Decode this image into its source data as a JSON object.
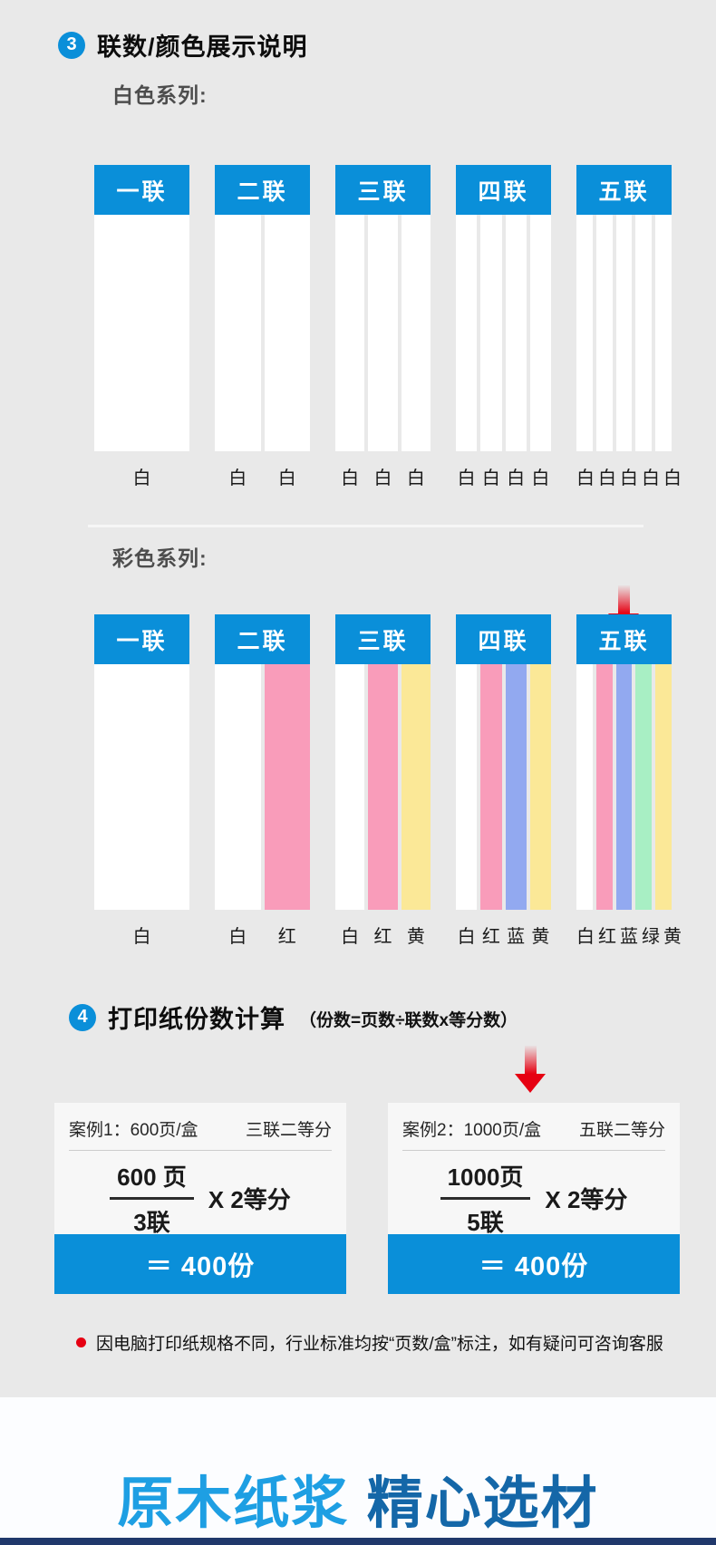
{
  "colors": {
    "brand_blue": "#0a8fd9",
    "page_bg": "#e9e9e9",
    "card_bg": "#f7f7f7",
    "accent_red": "#e60012",
    "headline_light_blue": "#1e9fe3",
    "headline_dark_blue": "#1467a8",
    "strip": {
      "white": "#ffffff",
      "pink": "#f99cba",
      "periwinkle": "#92a9f0",
      "mint": "#a8efc4",
      "yellow": "#fbe897"
    }
  },
  "section3": {
    "number": "3",
    "title": "联数/颜色展示说明",
    "white_series": {
      "label": "白色系列:",
      "columns": [
        {
          "header": "一联",
          "strips": [
            "white"
          ],
          "labels": [
            "白"
          ]
        },
        {
          "header": "二联",
          "strips": [
            "white",
            "white"
          ],
          "labels": [
            "白",
            "白"
          ]
        },
        {
          "header": "三联",
          "strips": [
            "white",
            "white",
            "white"
          ],
          "labels": [
            "白",
            "白",
            "白"
          ]
        },
        {
          "header": "四联",
          "strips": [
            "white",
            "white",
            "white",
            "white"
          ],
          "labels": [
            "白",
            "白",
            "白",
            "白"
          ]
        },
        {
          "header": "五联",
          "strips": [
            "white",
            "white",
            "white",
            "white",
            "white"
          ],
          "labels": [
            "白",
            "白",
            "白",
            "白",
            "白"
          ]
        }
      ]
    },
    "color_series": {
      "label": "彩色系列:",
      "columns": [
        {
          "header": "一联",
          "strips": [
            "white"
          ],
          "labels": [
            "白"
          ]
        },
        {
          "header": "二联",
          "strips": [
            "white",
            "pink"
          ],
          "labels": [
            "白",
            "红"
          ]
        },
        {
          "header": "三联",
          "strips": [
            "white",
            "pink",
            "yellow"
          ],
          "labels": [
            "白",
            "红",
            "黄"
          ]
        },
        {
          "header": "四联",
          "strips": [
            "white",
            "pink",
            "periwinkle",
            "yellow"
          ],
          "labels": [
            "白",
            "红",
            "蓝",
            "黄"
          ]
        },
        {
          "header": "五联",
          "strips": [
            "white",
            "pink",
            "periwinkle",
            "mint",
            "yellow"
          ],
          "labels": [
            "白",
            "红",
            "蓝",
            "绿",
            "黄"
          ]
        }
      ]
    }
  },
  "section4": {
    "number": "4",
    "title": "打印纸份数计算",
    "subtitle": "（份数=页数÷联数x等分数）",
    "cases": [
      {
        "name": "案例1：600页/盒",
        "spec": "三联二等分",
        "numerator": "600 页",
        "denominator": "3联",
        "multiplier": "X 2等分",
        "result": "＝ 400份"
      },
      {
        "name": "案例2：1000页/盒",
        "spec": "五联二等分",
        "numerator": "1000页",
        "denominator": "5联",
        "multiplier": "X 2等分",
        "result": "＝ 400份"
      }
    ],
    "note": "因电脑打印纸规格不同，行业标准均按“页数/盒”标注，如有疑问可咨询客服"
  },
  "footer": {
    "headline_light": "原木纸浆",
    "headline_dark": "精心选材"
  }
}
